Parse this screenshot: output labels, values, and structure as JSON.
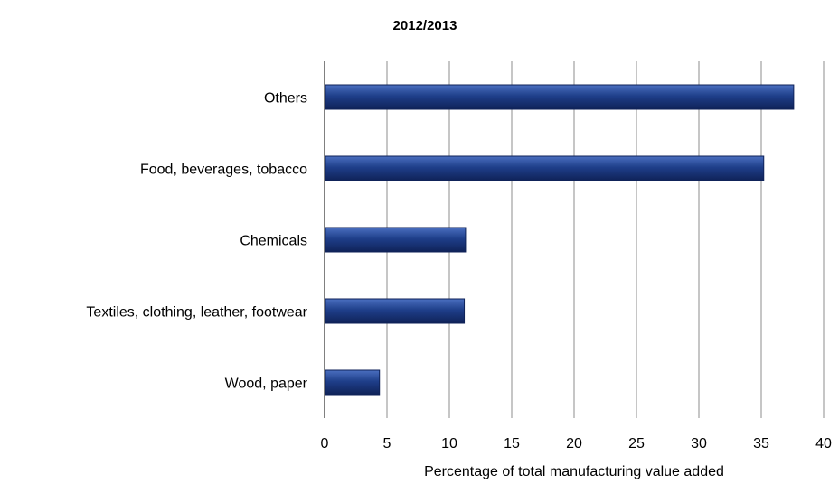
{
  "chart_data": {
    "type": "bar",
    "orientation": "horizontal",
    "title": "2012/2013",
    "xlabel": "Percentage of total manufacturing value added",
    "ylabel": "",
    "categories": [
      "Others",
      "Food, beverages, tobacco",
      "Chemicals",
      "Textiles, clothing, leather, footwear",
      "Wood, paper"
    ],
    "values": [
      37.6,
      35.2,
      11.3,
      11.2,
      4.4
    ],
    "xlim": [
      0,
      40
    ],
    "xticks": [
      "0",
      "5",
      "10",
      "15",
      "20",
      "25",
      "30",
      "35",
      "40"
    ],
    "grid": "vertical",
    "legend": "none",
    "colors": {
      "bar_light": "#4a6fc0",
      "bar_mid": "#1f3f8a",
      "bar_dark": "#0f2258",
      "grid": "#8c8c8c",
      "axis": "#000000"
    }
  }
}
